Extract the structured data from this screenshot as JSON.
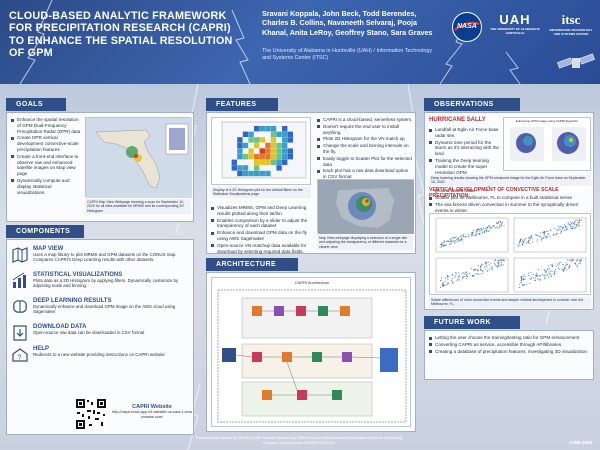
{
  "header": {
    "title": "CLOUD-BASED ANALYTIC FRAMEWORK FOR PRECIPITATION RESEARCH (CAPRI) TO ENHANCE THE SPATIAL RESOLUTION OF GPM",
    "authors": "Sravani Koppala, John Beck, Todd Berendes, Charles B. Collins, Navaneeth Selvaraj, Pooja Khanal, Anita LeRoy, Geoffrey Stano, Sara Graves",
    "affiliation": "The University of Alabama in Huntsville (UAH) / Information Technology and Systems Center (ITSC)",
    "logos": {
      "nasa": "NASA",
      "uah_line1": "UAH",
      "uah_line2": "THE UNIVERSITY OF ALABAMA IN HUNTSVILLE",
      "itsc_line1": "itsc",
      "itsc_line2": "INFORMATION TECHNOLOGY AND SYSTEMS CENTER"
    }
  },
  "goals": {
    "heading": "GOALS",
    "items": [
      "Enhance the spatial resolution of GPM Dual-Frequency Precipitation Radar (DPR) data",
      "Create DPR vertical development convective-scale precipitation features",
      "Create a front-end interface to observe raw and enhanced satellite images on Map view page",
      "Dynamically compute and display statistical visualizations."
    ],
    "caption": "CAPRI Map View Webpage showing a scan for September 10, 2020 for all sites available for MRMS and its corresponding 2D Histogram"
  },
  "components": {
    "heading": "COMPONENTS",
    "items": [
      {
        "icon": "map-icon",
        "title": "MAP VIEW",
        "desc": "Uses a map library to plot MRMS and GPM datasets on the CONUS map. Compares CAPRI's Deep Learning results with other datasets."
      },
      {
        "icon": "bar-chart-icon",
        "title": "STATISTICAL VISUALIZATIONS",
        "desc": "Plots data as a 2D Histogram by applying filters. Dynamically customize by adjusting scale and binning."
      },
      {
        "icon": "brain-icon",
        "title": "DEEP LEARNING RESULTS",
        "desc": "Dynamically enhance and download GPM image on the AWS cloud using Sagemaker"
      },
      {
        "icon": "download-icon",
        "title": "DOWNLOAD DATA",
        "desc": "Open-source raw data can be downloaded in CSV format"
      },
      {
        "icon": "help-icon",
        "title": "HELP",
        "desc": "Redirects to a new website providing instructions on CAPRI website"
      }
    ],
    "website_title": "CAPRI Website",
    "website_url": "http://capri-react-app.s3-website-us-east-1.amazonaws.com/"
  },
  "features": {
    "heading": "FEATURES",
    "top_items": [
      "CAPRI is a cloud-based, serverless system.",
      "Doesn't require the end user to install anything.",
      "Plots 2D Histogram for the VN match up",
      "Change the scale and binning intervals on the fly.",
      "Easily toggle to Scatter Plot for the selected data",
      "Each plot has a raw data download option in CSV format"
    ],
    "hist_caption": "Display of a 2D Histogram plot for the default filters on the Statistical Visualizations page.",
    "bottom_items": [
      "Visualizes MRMS, GPM and Deep Learning results plotted along their lat/lon.",
      "Enables comparison by a slider to adjust the transparency of each dataset",
      "Enhance and download GPM data on the fly using AWS Sagemaker",
      "Open-source VN matchup data available for download by selecting required data fields."
    ],
    "map_caption": "Map View webpage displaying a selection of a single site and adjusting the transparency of different datasets for a clearer view"
  },
  "architecture": {
    "heading": "ARCHITECTURE",
    "diagram_title": "CAPRI Architecture"
  },
  "observations": {
    "heading": "OBSERVATIONS",
    "sub1": "HURRICANE SALLY",
    "items": [
      "Landfall at Eglin Air Force base radar site.",
      "Dynamic time period for the storm as it's interacting with the land.",
      "Training the Deep learning model to create the super resolution GPM",
      "Makes future observations of offshore storms for missing ground based radar"
    ],
    "fig_title": "Enhancing GPM image using CAPRI Algorithm",
    "fig_caption": "Deep learning results showing the GPM enhanced image for the Eglin Air Force base on September 16, 2020",
    "sub2": "VERTICAL DEVELOPMENT OF CONVECTIVE SCALE PRECIPITATION:",
    "items2": [
      "Scatter plot for Melbourne, FL to compare in a built statistical sense",
      "The sea breeze driven convection in summer to the synoptically driven events in winter."
    ],
    "scatter_caption": "Subtle differences of more convective events and deeper vertical development in summer over the Melbourne, FL."
  },
  "future": {
    "heading": "FUTURE WORK",
    "items": [
      "Letting the user choose the training/testing ratio for GPM enhancement",
      "Converting CAPRI as service, accessible through API/libraries.",
      "Creating a database of precipitation features, investigating 3D visualization"
    ]
  },
  "footer": {
    "funding": "This work was funded by NASA's Earth Science Technology Office through their Advanced Information Systems Technology Program, Grant Number 80NSSC20K0309.",
    "reference": "A25B-1668"
  }
}
